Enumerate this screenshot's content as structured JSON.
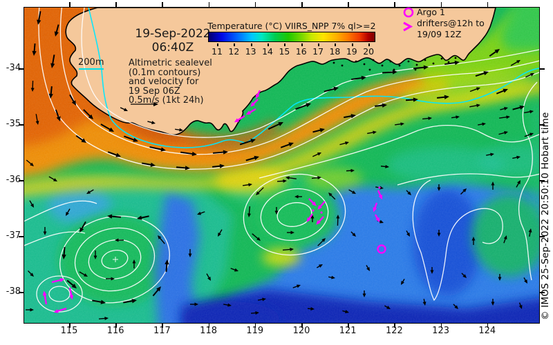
{
  "map": {
    "datetime": {
      "date": "19-Sep-2022",
      "time": "06:40Z"
    },
    "info_lines": [
      "Altimetric sealevel",
      "(0.1m contours)",
      "and velocity for",
      "19 Sep 06Z",
      "0.5m/s (1kt 24h)"
    ],
    "depth_label": "200m",
    "argo_legend": {
      "line1": "Argo 1",
      "line2": "drifters@12h to",
      "line3": "19/09 12Z"
    },
    "colorbar": {
      "title": "Temperature (°C) VIIRS_NPP 7% ql>=2",
      "tick_labels": [
        "11",
        "12",
        "13",
        "14",
        "15",
        "16",
        "17",
        "18",
        "19",
        "20"
      ],
      "min": 11,
      "max": 20,
      "units": "°C"
    },
    "axes": {
      "lat_labels": [
        "-34",
        "-35",
        "-36",
        "-37",
        "-38"
      ],
      "lon_labels": [
        "115",
        "116",
        "117",
        "118",
        "119",
        "120",
        "121",
        "122",
        "123",
        "124"
      ]
    },
    "credit": "© IMOS 25-Sep-2022 20:50:10 Hobart time",
    "colors": {
      "land": "#f5c89b",
      "drifter": "#ff00ff",
      "isobath": "#00e8ff",
      "contour": "#ffffff",
      "warm_core": "#e65c00",
      "cold_deep": "#0a28b8"
    }
  }
}
